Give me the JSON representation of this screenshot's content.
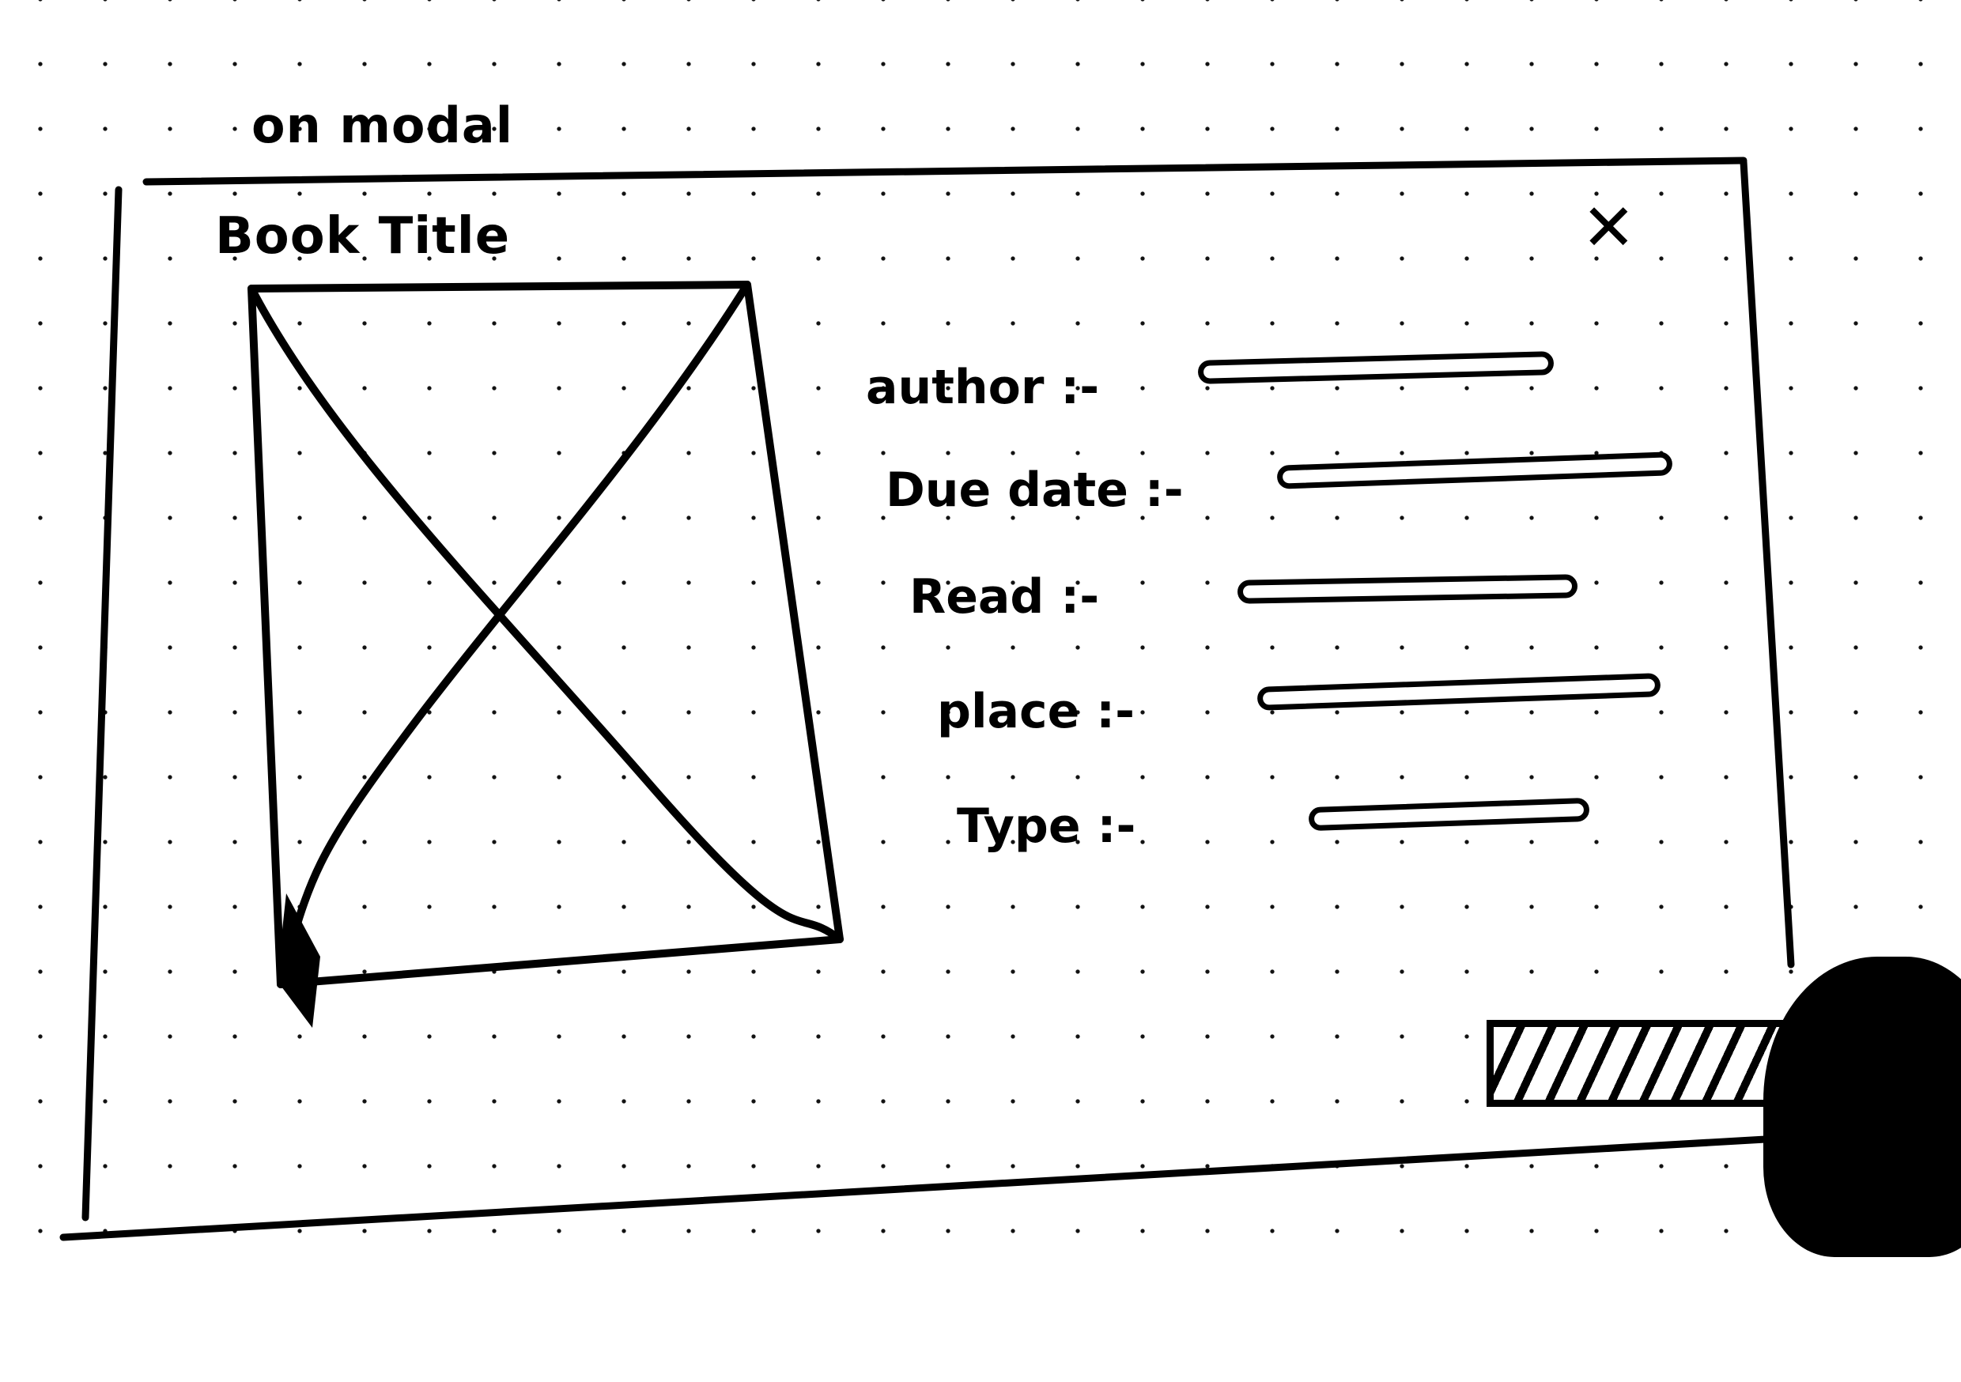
{
  "caption": "on modal",
  "modal": {
    "title": "Book Title",
    "close_icon": "close-icon",
    "fields": [
      {
        "label": "author :-"
      },
      {
        "label": "Due date :-"
      },
      {
        "label": "Read :-"
      },
      {
        "label": "place :-"
      },
      {
        "label": "Type :-"
      }
    ]
  }
}
